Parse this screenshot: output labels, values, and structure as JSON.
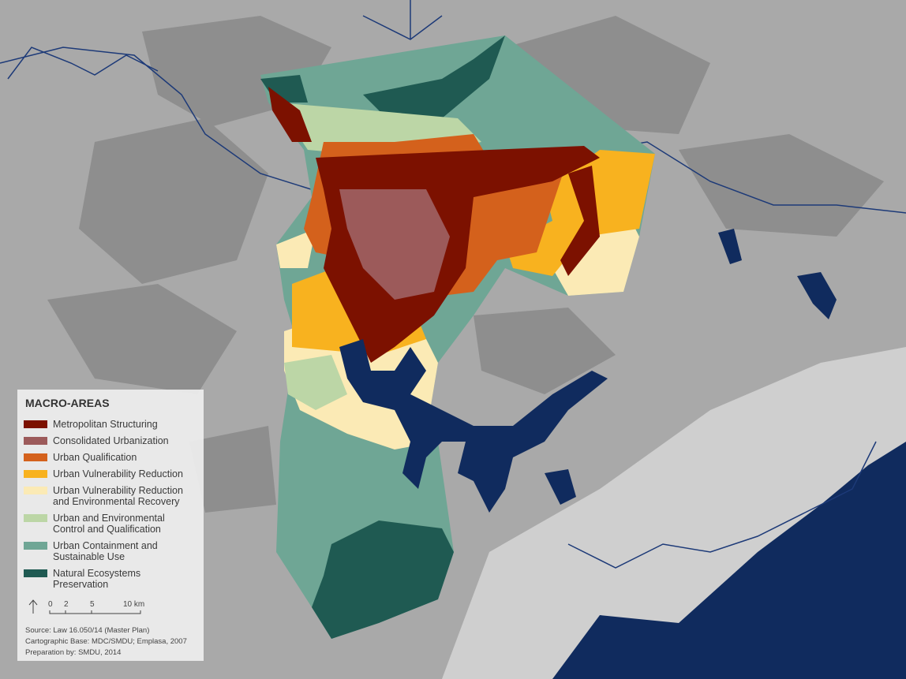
{
  "legend": {
    "title": "MACRO-AREAS",
    "items": [
      {
        "lines": [
          "Metropolitan Structuring"
        ],
        "color": "#7c1100"
      },
      {
        "lines": [
          "Consolidated Urbanization"
        ],
        "color": "#9c5a5a"
      },
      {
        "lines": [
          "Urban Qualification"
        ],
        "color": "#d4611c"
      },
      {
        "lines": [
          "Urban Vulnerability Reduction"
        ],
        "color": "#f8b21f"
      },
      {
        "lines": [
          "Urban Vulnerability Reduction",
          "and Environmental Recovery"
        ],
        "color": "#fbeab5"
      },
      {
        "lines": [
          "Urban and Environmental",
          "Control and Qualification"
        ],
        "color": "#bcd6a6"
      },
      {
        "lines": [
          "Urban Containment and",
          "Sustainable Use"
        ],
        "color": "#6fa695"
      },
      {
        "lines": [
          "Natural Ecosystems",
          "Preservation"
        ],
        "color": "#1f5a52"
      }
    ]
  },
  "scale": {
    "labels": [
      "0",
      "2",
      "5",
      "10 km"
    ]
  },
  "credits": [
    "Source: Law 16.050/14 (Master Plan)",
    "Cartographic Base: MDC/SMDU; Emplasa, 2007",
    "Preparation by: SMDU, 2014"
  ]
}
